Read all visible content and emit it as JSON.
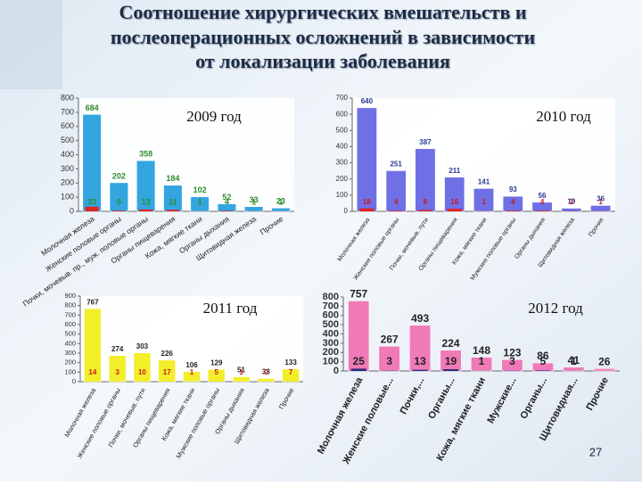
{
  "title": [
    "Соотношение хирургических вмешательств и",
    "послеоперационных осложнений в зависимости",
    "от локализации заболевания"
  ],
  "page_number": "27",
  "chart_data": [
    {
      "type": "bar",
      "title": "2009 год",
      "categories": [
        "Молочная железа",
        "Женские половые органы",
        "Почки, мочевыв. пр., муж. половые органы",
        "Органы пищеварения",
        "Кожа, мягкие ткани",
        "Органы дыхания",
        "Щитовидная железа",
        "Прочие"
      ],
      "series": [
        {
          "color": "#33a6e0",
          "label_color": "#2e8b2e",
          "values": [
            684,
            202,
            358,
            184,
            102,
            52,
            33,
            23
          ]
        },
        {
          "color": "#e02424",
          "label_color": "#2e8b2e",
          "values": [
            33,
            5,
            13,
            11,
            1,
            4,
            1,
            1
          ]
        }
      ],
      "ylim": [
        0,
        800
      ],
      "yticks": [
        0,
        100,
        200,
        300,
        400,
        500,
        600,
        700,
        800
      ]
    },
    {
      "type": "bar",
      "title": "2010 год",
      "categories": [
        "Молочная железа",
        "Женские половые органы",
        "Почки, мочевыв. пути",
        "Органы пищеварения",
        "Кожа, мягкие ткани",
        "Мужские половые органы",
        "Органы дыхания",
        "Щитовидная железа",
        "Прочие"
      ],
      "series": [
        {
          "color": "#6f6fe6",
          "label_color": "#2a3a9a",
          "values": [
            640,
            251,
            387,
            211,
            141,
            93,
            56,
            19,
            36
          ]
        },
        {
          "color": "#e02424",
          "label_color": "#c81818",
          "values": [
            18,
            4,
            8,
            16,
            1,
            4,
            4,
            2,
            1
          ]
        }
      ],
      "ylim": [
        0,
        700
      ],
      "yticks": [
        0,
        100,
        200,
        300,
        400,
        500,
        600,
        700
      ]
    },
    {
      "type": "bar",
      "title": "2011 год",
      "categories": [
        "Молочная железа",
        "Женские половые органы",
        "Почки, мочевыв. пути",
        "Органы пищеварения",
        "Кожа, мягкие ткани",
        "Мужские половые органы",
        "Органы дыхания",
        "Щитовидная железа",
        "Прочие"
      ],
      "series": [
        {
          "color": "#f2ee2a",
          "label_color": "#222222",
          "values": [
            767,
            274,
            303,
            226,
            106,
            129,
            51,
            33,
            133
          ]
        },
        {
          "color": "#f2ee2a",
          "label_color": "#d01818",
          "values": [
            14,
            3,
            10,
            17,
            1,
            5,
            1,
            0,
            7
          ]
        }
      ],
      "ylim": [
        0,
        900
      ],
      "yticks": [
        0,
        100,
        200,
        300,
        400,
        500,
        600,
        700,
        800,
        900
      ]
    },
    {
      "type": "bar",
      "title": "2012 год",
      "categories": [
        "Молочная железа",
        "Женские половые...",
        "Почки,...",
        "Органы...",
        "Кожа, мягкие ткани",
        "Мужские...",
        "Органы...",
        "Щитовидная...",
        "Прочие"
      ],
      "series": [
        {
          "color": "#f07ab8",
          "label_color": "#222222",
          "values": [
            757,
            267,
            493,
            224,
            148,
            123,
            86,
            41,
            26
          ]
        },
        {
          "color": "#2a2a7a",
          "label_color": "#222222",
          "values": [
            25,
            3,
            13,
            19,
            1,
            3,
            5,
            1,
            null
          ]
        }
      ],
      "ylim": [
        0,
        800
      ],
      "yticks": [
        0,
        100,
        200,
        300,
        400,
        500,
        600,
        700,
        800
      ]
    }
  ]
}
